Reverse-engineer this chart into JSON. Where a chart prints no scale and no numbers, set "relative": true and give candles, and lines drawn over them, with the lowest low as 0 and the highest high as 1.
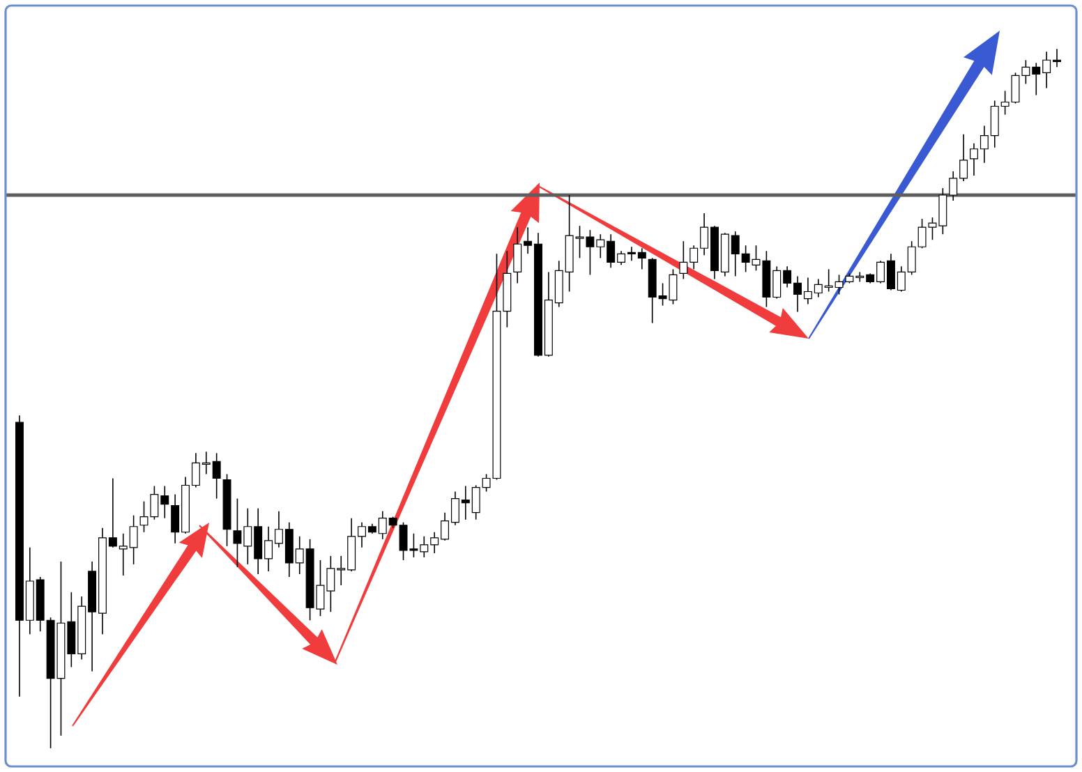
{
  "chart_data": {
    "type": "candlestick",
    "relative": true,
    "color": "#000000",
    "categories": [
      null,
      null,
      null,
      null,
      null,
      null,
      null,
      null,
      null,
      null,
      null,
      null,
      null,
      null,
      null,
      null,
      null,
      null,
      null,
      null,
      null,
      null,
      null,
      null,
      null,
      null,
      null,
      null,
      null,
      null,
      null,
      null,
      null,
      null,
      null,
      null,
      null,
      null,
      null,
      null,
      null,
      null,
      null,
      null,
      null,
      null,
      null,
      null,
      null,
      null,
      null,
      null,
      null,
      null,
      null,
      null,
      null,
      null,
      null,
      null,
      null,
      null,
      null,
      null,
      null,
      null,
      null,
      null,
      null,
      null,
      null,
      null,
      null,
      null,
      null,
      null,
      null,
      null,
      null,
      null,
      null,
      null,
      null,
      null,
      null,
      null,
      null,
      null,
      null,
      null,
      null,
      null,
      null,
      null,
      null,
      null,
      null,
      null,
      null,
      null,
      null
    ],
    "ohlc": [
      [
        0.466,
        0.476,
        0.074,
        0.183
      ],
      [
        0.183,
        0.287,
        0.163,
        0.239
      ],
      [
        0.241,
        0.245,
        0.167,
        0.183
      ],
      [
        0.183,
        0.187,
        0,
        0.1
      ],
      [
        0.1,
        0.267,
        0.018,
        0.179
      ],
      [
        0.181,
        0.223,
        0.116,
        0.135
      ],
      [
        0.135,
        0.217,
        0.127,
        0.203
      ],
      [
        0.253,
        0.267,
        0.11,
        0.195
      ],
      [
        0.193,
        0.315,
        0.163,
        0.301
      ],
      [
        0.301,
        0.386,
        0.287,
        0.289
      ],
      [
        0.285,
        0.307,
        0.247,
        0.289
      ],
      [
        0.287,
        0.333,
        0.263,
        0.317
      ],
      [
        0.319,
        0.353,
        0.309,
        0.331
      ],
      [
        0.331,
        0.375,
        0.327,
        0.363
      ],
      [
        0.361,
        0.375,
        0.329,
        0.349
      ],
      [
        0.347,
        0.363,
        0.293,
        0.309
      ],
      [
        0.309,
        0.388,
        0.307,
        0.376
      ],
      [
        0.376,
        0.422,
        0.373,
        0.408
      ],
      [
        0.406,
        0.424,
        0.392,
        0.408
      ],
      [
        0.41,
        0.422,
        0.357,
        0.386
      ],
      [
        0.384,
        0.392,
        0.289,
        0.313
      ],
      [
        0.311,
        0.357,
        0.259,
        0.293
      ],
      [
        0.289,
        0.343,
        0.263,
        0.317
      ],
      [
        0.317,
        0.343,
        0.249,
        0.271
      ],
      [
        0.271,
        0.317,
        0.253,
        0.297
      ],
      [
        0.293,
        0.339,
        0.287,
        0.313
      ],
      [
        0.313,
        0.323,
        0.245,
        0.265
      ],
      [
        0.265,
        0.303,
        0.249,
        0.285
      ],
      [
        0.285,
        0.299,
        0.183,
        0.201
      ],
      [
        0.199,
        0.269,
        0.189,
        0.233
      ],
      [
        0.225,
        0.275,
        0.195,
        0.257
      ],
      [
        0.255,
        0.275,
        0.233,
        0.257
      ],
      [
        0.255,
        0.329,
        0.253,
        0.303
      ],
      [
        0.303,
        0.323,
        0.287,
        0.317
      ],
      [
        0.317,
        0.321,
        0.307,
        0.309
      ],
      [
        0.307,
        0.339,
        0.299,
        0.329
      ],
      [
        0.329,
        0.331,
        0.315,
        0.319
      ],
      [
        0.319,
        0.323,
        0.269,
        0.283
      ],
      [
        0.285,
        0.307,
        0.273,
        0.283
      ],
      [
        0.281,
        0.303,
        0.273,
        0.291
      ],
      [
        0.291,
        0.309,
        0.279,
        0.301
      ],
      [
        0.299,
        0.337,
        0.297,
        0.325
      ],
      [
        0.323,
        0.367,
        0.319,
        0.357
      ],
      [
        0.355,
        0.375,
        0.327,
        0.351
      ],
      [
        0.337,
        0.376,
        0.327,
        0.373
      ],
      [
        0.373,
        0.392,
        0.367,
        0.386
      ],
      [
        0.386,
        0.707,
        0.384,
        0.625
      ],
      [
        0.625,
        0.711,
        0.602,
        0.679
      ],
      [
        0.681,
        0.745,
        0.665,
        0.721
      ],
      [
        0.725,
        0.745,
        0.707,
        0.719
      ],
      [
        0.721,
        0.737,
        0.56,
        0.562
      ],
      [
        0.562,
        0.681,
        0.56,
        0.641
      ],
      [
        0.637,
        0.697,
        0.631,
        0.683
      ],
      [
        0.681,
        0.791,
        0.653,
        0.733
      ],
      [
        0.729,
        0.747,
        0.701,
        0.731
      ],
      [
        0.731,
        0.741,
        0.677,
        0.717
      ],
      [
        0.717,
        0.735,
        0.701,
        0.727
      ],
      [
        0.725,
        0.735,
        0.687,
        0.695
      ],
      [
        0.695,
        0.711,
        0.691,
        0.707
      ],
      [
        0.709,
        0.717,
        0.697,
        0.707
      ],
      [
        0.709,
        0.715,
        0.685,
        0.701
      ],
      [
        0.699,
        0.701,
        0.608,
        0.645
      ],
      [
        0.647,
        0.665,
        0.633,
        0.643
      ],
      [
        0.641,
        0.685,
        0.635,
        0.677
      ],
      [
        0.679,
        0.725,
        0.671,
        0.695
      ],
      [
        0.695,
        0.719,
        0.685,
        0.715
      ],
      [
        0.715,
        0.765,
        0.705,
        0.745
      ],
      [
        0.745,
        0.747,
        0.671,
        0.683
      ],
      [
        0.681,
        0.737,
        0.675,
        0.735
      ],
      [
        0.733,
        0.739,
        0.675,
        0.707
      ],
      [
        0.707,
        0.719,
        0.681,
        0.695
      ],
      [
        0.691,
        0.719,
        0.683,
        0.699
      ],
      [
        0.697,
        0.711,
        0.631,
        0.645
      ],
      [
        0.645,
        0.689,
        0.643,
        0.683
      ],
      [
        0.683,
        0.689,
        0.659,
        0.665
      ],
      [
        0.665,
        0.675,
        0.624,
        0.649
      ],
      [
        0.643,
        0.673,
        0.635,
        0.653
      ],
      [
        0.651,
        0.671,
        0.645,
        0.663
      ],
      [
        0.659,
        0.685,
        0.653,
        0.661
      ],
      [
        0.659,
        0.677,
        0.649,
        0.667
      ],
      [
        0.667,
        0.679,
        0.665,
        0.675
      ],
      [
        0.673,
        0.681,
        0.667,
        0.675
      ],
      [
        0.677,
        0.679,
        0.665,
        0.667
      ],
      [
        0.667,
        0.697,
        0.665,
        0.695
      ],
      [
        0.697,
        0.707,
        0.655,
        0.657
      ],
      [
        0.655,
        0.689,
        0.653,
        0.681
      ],
      [
        0.681,
        0.725,
        0.677,
        0.717
      ],
      [
        0.717,
        0.757,
        0.715,
        0.745
      ],
      [
        0.745,
        0.759,
        0.727,
        0.751
      ],
      [
        0.747,
        0.801,
        0.735,
        0.791
      ],
      [
        0.791,
        0.825,
        0.783,
        0.815
      ],
      [
        0.815,
        0.878,
        0.811,
        0.841
      ],
      [
        0.843,
        0.865,
        0.819,
        0.857
      ],
      [
        0.857,
        0.89,
        0.837,
        0.876
      ],
      [
        0.876,
        0.926,
        0.859,
        0.918
      ],
      [
        0.918,
        0.94,
        0.906,
        0.924
      ],
      [
        0.924,
        0.966,
        0.922,
        0.962
      ],
      [
        0.962,
        0.984,
        0.95,
        0.974
      ],
      [
        0.974,
        0.98,
        0.934,
        0.964
      ],
      [
        0.966,
        0.996,
        0.944,
        0.984
      ],
      [
        0.984,
        1,
        0.974,
        0.982
      ]
    ],
    "ref_lines": [
      {
        "axis": "y",
        "value": 0.791,
        "color": "#5e5e5e"
      }
    ]
  }
}
